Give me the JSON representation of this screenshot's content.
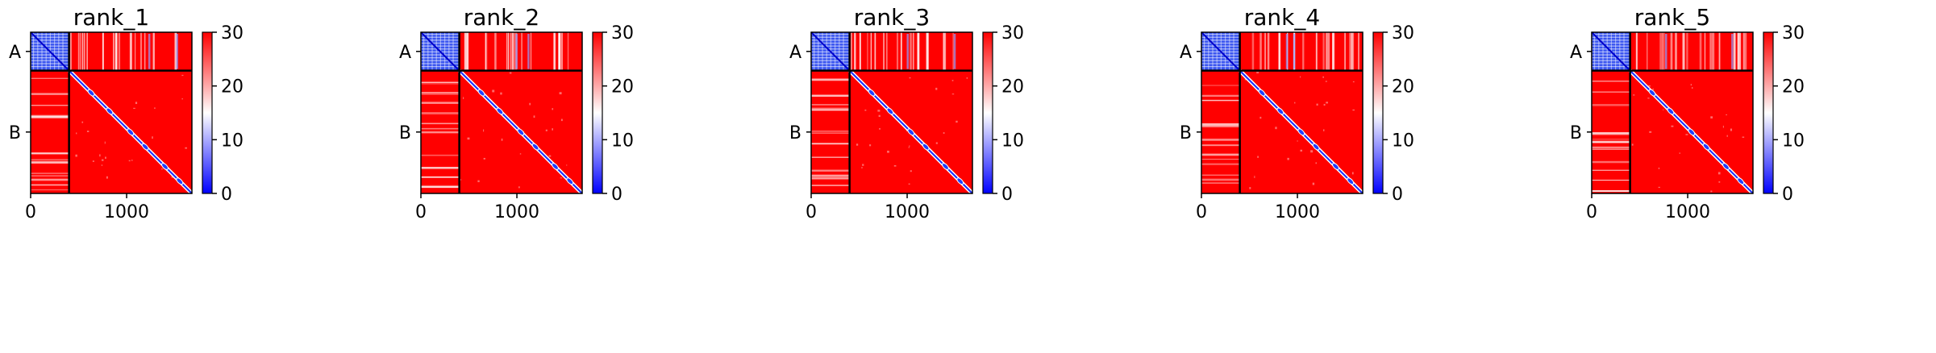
{
  "chart_data": {
    "type": "heatmap",
    "description_free": true,
    "x_ticks": [
      0,
      1000
    ],
    "x_range": [
      0,
      1680
    ],
    "y_ticks": [
      "A",
      "B"
    ],
    "chain_boundary": 400,
    "colorbar": {
      "ticks": [
        0,
        10,
        20,
        30
      ],
      "range": [
        0,
        30
      ],
      "colors": [
        "#0000ff",
        "#ffffff",
        "#ff0000"
      ]
    },
    "panels": [
      {
        "title": "rank_1"
      },
      {
        "title": "rank_2"
      },
      {
        "title": "rank_3"
      },
      {
        "title": "rank_4"
      },
      {
        "title": "rank_5"
      }
    ]
  }
}
